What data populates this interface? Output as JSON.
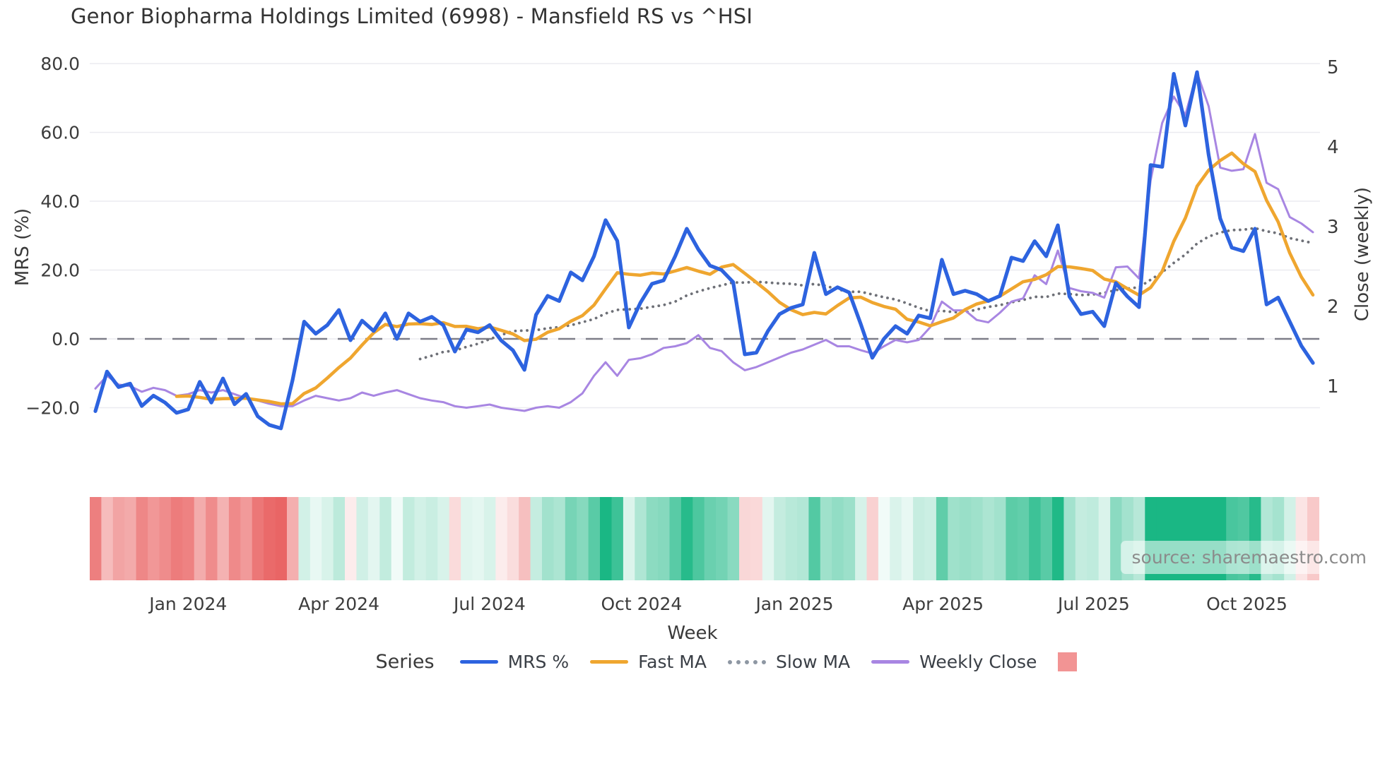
{
  "title": "Genor Biopharma Holdings Limited (6998) - Mansfield RS vs ^HSI",
  "source_note": "source: sharemaestro.com",
  "axes": {
    "x_label": "Week",
    "left_label": "MRS (%)",
    "right_label": "Close (weekly)",
    "left_ticks": [
      {
        "value": 80,
        "label": "80.0"
      },
      {
        "value": 60,
        "label": "60.0"
      },
      {
        "value": 40,
        "label": "40.0"
      },
      {
        "value": 20,
        "label": "20.0"
      },
      {
        "value": 0,
        "label": "0.0"
      },
      {
        "value": -20,
        "label": "−20.0"
      }
    ],
    "right_ticks": [
      {
        "value": 5,
        "label": "5"
      },
      {
        "value": 4,
        "label": "4"
      },
      {
        "value": 3,
        "label": "3"
      },
      {
        "value": 2,
        "label": "2"
      },
      {
        "value": 1,
        "label": "1"
      }
    ],
    "x_ticks": [
      {
        "week": 8,
        "label": "Jan 2024"
      },
      {
        "week": 21,
        "label": "Apr 2024"
      },
      {
        "week": 34,
        "label": "Jul 2024"
      },
      {
        "week": 47.1,
        "label": "Oct 2024"
      },
      {
        "week": 60.3,
        "label": "Jan 2025"
      },
      {
        "week": 73.1,
        "label": "Apr 2025"
      },
      {
        "week": 86.1,
        "label": "Jul 2025"
      },
      {
        "week": 99.3,
        "label": "Oct 2025"
      }
    ]
  },
  "legend": {
    "title": "Series",
    "items": [
      {
        "label": "MRS %",
        "swatch": "line",
        "color": "#2d63df"
      },
      {
        "label": "Fast MA",
        "swatch": "line",
        "color": "#efa62f"
      },
      {
        "label": "Slow MA",
        "swatch": "dotted",
        "color": "#8e97a3"
      },
      {
        "label": "Weekly Close",
        "swatch": "line",
        "color": "#a886e2"
      },
      {
        "label": "",
        "swatch": "square",
        "color": "#f29494"
      }
    ]
  },
  "chart_data": {
    "type": "line",
    "title": "Genor Biopharma Holdings Limited (6998) - Mansfield RS vs ^HSI",
    "xlabel": "Week",
    "ylabel_left": "MRS (%)",
    "ylabel_right": "Close (weekly)",
    "x": "weekly index, 106 consecutive weeks (mid-Nov 2023 through mid-Nov 2025)",
    "ylim_left": [
      -32,
      84
    ],
    "right_axis_range": [
      1,
      5
    ],
    "grid": true,
    "zero_line_dashed": true,
    "legend_position": "bottom",
    "series": [
      {
        "name": "MRS %",
        "axis": "left",
        "color": "#2d63df",
        "line_style": "solid",
        "values": [
          -21,
          -9.5,
          -14,
          -13,
          -19.5,
          -16.5,
          -18.5,
          -21.5,
          -20.5,
          -12.5,
          -18.5,
          -11.5,
          -19,
          -16,
          -22.5,
          -25,
          -26,
          -12,
          5,
          1.5,
          4,
          8.4,
          -0.4,
          5.3,
          2.3,
          7.4,
          0,
          7.4,
          5,
          6.4,
          4,
          -3.7,
          2.7,
          1.9,
          4,
          -0.5,
          -3.3,
          -9,
          7,
          12.5,
          11,
          19.3,
          17,
          24,
          34.5,
          28.5,
          3.3,
          10.5,
          16,
          17,
          24,
          32,
          26,
          21.3,
          20,
          16.5,
          -4.5,
          -4,
          2.3,
          7.2,
          9,
          10,
          25,
          13,
          15,
          13.5,
          4.3,
          -5.5,
          0,
          3.7,
          1.5,
          6.8,
          6,
          23,
          13,
          14,
          13,
          11,
          12.5,
          23.6,
          22.6,
          28.4,
          24,
          33,
          12.3,
          7.2,
          7.9,
          3.7,
          16.2,
          12.3,
          9.2,
          50.5,
          50,
          77,
          62,
          77.5,
          53.5,
          35,
          26.5,
          25.5,
          32,
          10,
          12,
          5,
          -2,
          -7
        ]
      },
      {
        "name": "Fast MA",
        "axis": "left",
        "color": "#efa62f",
        "line_style": "solid",
        "derived": {
          "sma_of": "MRS %",
          "window": 8,
          "draw_from_index": 7
        }
      },
      {
        "name": "Slow MA",
        "axis": "left",
        "color": "#6e7077",
        "line_style": "dotted",
        "derived": {
          "sma_of": "MRS %",
          "window": 20,
          "draw_from_index": 28
        }
      },
      {
        "name": "Weekly Close",
        "axis": "right",
        "color": "#a886e2",
        "line_style": "solid",
        "values": [
          0.97,
          1.13,
          1.02,
          1.0,
          0.93,
          0.98,
          0.95,
          0.88,
          0.9,
          0.95,
          0.92,
          0.95,
          0.9,
          0.85,
          0.82,
          0.78,
          0.75,
          0.75,
          0.82,
          0.88,
          0.85,
          0.82,
          0.85,
          0.92,
          0.88,
          0.92,
          0.95,
          0.9,
          0.85,
          0.82,
          0.8,
          0.75,
          0.73,
          0.75,
          0.77,
          0.73,
          0.71,
          0.69,
          0.73,
          0.75,
          0.73,
          0.8,
          0.91,
          1.13,
          1.3,
          1.13,
          1.33,
          1.35,
          1.4,
          1.48,
          1.5,
          1.54,
          1.64,
          1.48,
          1.44,
          1.3,
          1.2,
          1.24,
          1.3,
          1.36,
          1.42,
          1.46,
          1.52,
          1.58,
          1.5,
          1.5,
          1.45,
          1.41,
          1.5,
          1.58,
          1.55,
          1.58,
          1.74,
          2.06,
          1.95,
          1.95,
          1.83,
          1.8,
          1.92,
          2.06,
          2.1,
          2.39,
          2.28,
          2.7,
          2.23,
          2.19,
          2.17,
          2.11,
          2.49,
          2.5,
          2.35,
          3.58,
          4.3,
          4.63,
          4.4,
          4.93,
          4.51,
          3.74,
          3.7,
          3.72,
          4.16,
          3.55,
          3.47,
          3.12,
          3.04,
          2.93
        ]
      }
    ],
    "heatmap_strip": {
      "basis": "MRS %",
      "description": "one cell per week under the plot, tinted red for negative MRS and green for positive MRS, intensity scaled by magnitude",
      "negative_color": "#e85a5a",
      "positive_color": "#1ab784"
    }
  },
  "colors": {
    "background": "#ffffff",
    "gridline": "#ebebf0",
    "zero_line": "#7d7d88",
    "tick_text": "#3c3c3c",
    "title_text": "#333333",
    "source_text": "#8b8b8b",
    "legend_square": "#f29494"
  }
}
